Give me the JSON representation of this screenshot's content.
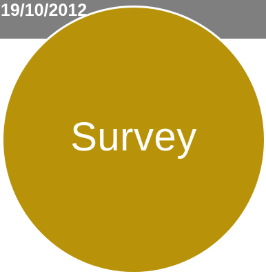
{
  "header": {
    "date": "19/10/2012",
    "color": "#7f7f7f"
  },
  "diagram": {
    "node": {
      "label": "Survey",
      "fill_color": "#b8930a",
      "border_color": "#ffffff"
    }
  }
}
